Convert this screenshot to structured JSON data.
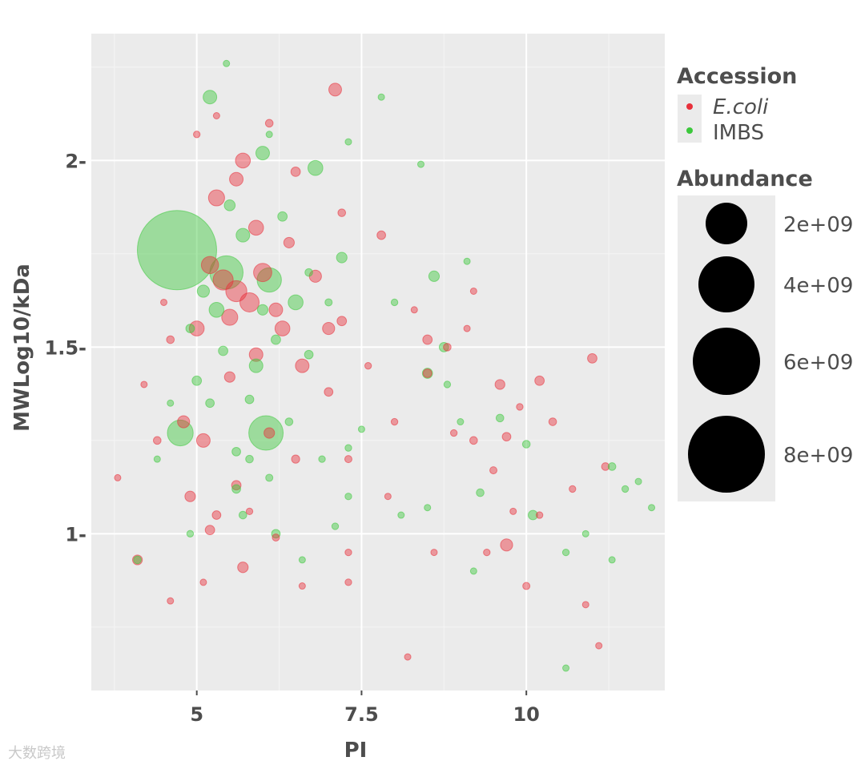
{
  "chart_data": {
    "type": "scatter",
    "title": "",
    "xlabel": "PI",
    "ylabel": "MWLog10/kDa",
    "xlim": [
      3.4,
      12.1
    ],
    "ylim": [
      0.58,
      2.34
    ],
    "x_ticks": [
      5,
      7.5,
      10
    ],
    "x_tick_labels": [
      "5",
      "7.5",
      "10"
    ],
    "y_ticks": [
      1.0,
      1.5,
      2.0
    ],
    "y_tick_labels": [
      "1-",
      "1.5-",
      "2-"
    ],
    "grid": true,
    "legend_placement": "right",
    "legends": {
      "color": {
        "title": "Accession",
        "entries": [
          {
            "label": "E.coli",
            "color": "#e8303b"
          },
          {
            "label": "IMBS",
            "color": "#3cc83c"
          }
        ]
      },
      "size": {
        "title": "Abundance",
        "entries": [
          {
            "label": "2e+09",
            "value": 2000000000
          },
          {
            "label": "4e+09",
            "value": 4000000000
          },
          {
            "label": "6e+09",
            "value": 6000000000
          },
          {
            "label": "8e+09",
            "value": 8000000000
          }
        ]
      }
    },
    "series": [
      {
        "name": "E.coli",
        "color": "#e8303b",
        "points": [
          [
            5.4,
            1.68,
            550000000.0
          ],
          [
            5.6,
            1.65,
            600000000.0
          ],
          [
            5.2,
            1.72,
            400000000.0
          ],
          [
            5.8,
            1.62,
            500000000.0
          ],
          [
            5.5,
            1.58,
            350000000.0
          ],
          [
            5.0,
            1.55,
            300000000.0
          ],
          [
            6.0,
            1.7,
            450000000.0
          ],
          [
            5.3,
            1.9,
            350000000.0
          ],
          [
            5.7,
            2.0,
            300000000.0
          ],
          [
            6.3,
            1.55,
            300000000.0
          ],
          [
            6.6,
            1.45,
            250000000.0
          ],
          [
            7.1,
            2.19,
            220000000.0
          ],
          [
            4.8,
            1.3,
            200000000.0
          ],
          [
            5.1,
            1.25,
            250000000.0
          ],
          [
            5.9,
            1.48,
            250000000.0
          ],
          [
            6.2,
            1.6,
            250000000.0
          ],
          [
            5.6,
            1.95,
            250000000.0
          ],
          [
            5.9,
            1.82,
            300000000.0
          ],
          [
            7.0,
            1.55,
            200000000.0
          ],
          [
            6.8,
            1.69,
            200000000.0
          ],
          [
            5.7,
            0.91,
            150000000.0
          ],
          [
            4.1,
            0.93,
            130000000.0
          ],
          [
            5.2,
            1.01,
            120000000.0
          ],
          [
            4.9,
            1.1,
            150000000.0
          ],
          [
            6.1,
            1.27,
            150000000.0
          ],
          [
            5.3,
            1.05,
            100000000.0
          ],
          [
            5.6,
            1.13,
            120000000.0
          ],
          [
            7.8,
            1.8,
            100000000.0
          ],
          [
            8.5,
            1.52,
            120000000.0
          ],
          [
            8.5,
            1.43,
            100000000.0
          ],
          [
            8.8,
            1.5,
            80000000.0
          ],
          [
            9.7,
            0.97,
            200000000.0
          ],
          [
            9.6,
            1.4,
            130000000.0
          ],
          [
            9.7,
            1.26,
            100000000.0
          ],
          [
            10.2,
            1.41,
            120000000.0
          ],
          [
            10.4,
            1.3,
            80000000.0
          ],
          [
            11.0,
            1.47,
            120000000.0
          ],
          [
            9.2,
            1.25,
            80000000.0
          ],
          [
            10.0,
            0.86,
            70000000.0
          ],
          [
            11.2,
            1.18,
            80000000.0
          ],
          [
            9.5,
            1.17,
            70000000.0
          ],
          [
            10.7,
            1.12,
            60000000.0
          ],
          [
            7.2,
            1.57,
            120000000.0
          ],
          [
            7.0,
            1.38,
            100000000.0
          ],
          [
            7.3,
            1.2,
            70000000.0
          ],
          [
            6.5,
            1.2,
            90000000.0
          ],
          [
            5.5,
            1.42,
            150000000.0
          ],
          [
            6.4,
            1.78,
            150000000.0
          ],
          [
            4.6,
            1.52,
            80000000.0
          ],
          [
            4.4,
            1.25,
            80000000.0
          ],
          [
            3.8,
            1.15,
            40000000.0
          ],
          [
            4.2,
            1.4,
            50000000.0
          ],
          [
            5.8,
            1.06,
            60000000.0
          ],
          [
            6.2,
            0.99,
            70000000.0
          ],
          [
            7.3,
            0.87,
            60000000.0
          ],
          [
            8.2,
            0.67,
            50000000.0
          ],
          [
            11.1,
            0.7,
            30000000.0
          ],
          [
            10.2,
            1.05,
            60000000.0
          ],
          [
            9.8,
            1.06,
            50000000.0
          ],
          [
            8.9,
            1.27,
            60000000.0
          ],
          [
            9.4,
            0.95,
            60000000.0
          ],
          [
            7.3,
            0.95,
            60000000.0
          ],
          [
            6.6,
            0.86,
            40000000.0
          ],
          [
            5.1,
            0.87,
            50000000.0
          ],
          [
            4.6,
            0.82,
            30000000.0
          ],
          [
            6.1,
            2.1,
            80000000.0
          ],
          [
            5.0,
            2.07,
            60000000.0
          ],
          [
            6.5,
            1.97,
            120000000.0
          ],
          [
            7.2,
            1.86,
            80000000.0
          ],
          [
            7.6,
            1.45,
            60000000.0
          ],
          [
            8.0,
            1.3,
            60000000.0
          ],
          [
            8.3,
            1.6,
            50000000.0
          ],
          [
            9.1,
            1.55,
            50000000.0
          ],
          [
            9.9,
            1.34,
            60000000.0
          ],
          [
            9.2,
            1.65,
            40000000.0
          ],
          [
            7.9,
            1.1,
            50000000.0
          ],
          [
            8.6,
            0.95,
            40000000.0
          ],
          [
            10.9,
            0.81,
            30000000.0
          ],
          [
            4.5,
            1.62,
            50000000.0
          ],
          [
            5.3,
            2.12,
            40000000.0
          ]
        ]
      },
      {
        "name": "IMBS",
        "color": "#3cc83c",
        "points": [
          [
            4.7,
            1.76,
            8500000000.0
          ],
          [
            6.05,
            1.27,
            1600000000.0
          ],
          [
            4.75,
            1.27,
            900000000.0
          ],
          [
            5.45,
            1.7,
            1500000000.0
          ],
          [
            6.1,
            1.68,
            800000000.0
          ],
          [
            5.2,
            2.17,
            250000000.0
          ],
          [
            6.8,
            1.98,
            300000000.0
          ],
          [
            6.0,
            2.02,
            250000000.0
          ],
          [
            6.5,
            1.62,
            300000000.0
          ],
          [
            5.9,
            1.45,
            250000000.0
          ],
          [
            5.3,
            1.6,
            300000000.0
          ],
          [
            5.7,
            1.8,
            250000000.0
          ],
          [
            7.2,
            1.74,
            150000000.0
          ],
          [
            8.6,
            1.69,
            150000000.0
          ],
          [
            8.75,
            1.5,
            120000000.0
          ],
          [
            8.5,
            1.43,
            140000000.0
          ],
          [
            10.1,
            1.05,
            120000000.0
          ],
          [
            10.0,
            1.24,
            80000000.0
          ],
          [
            4.1,
            0.93,
            80000000.0
          ],
          [
            5.7,
            1.05,
            80000000.0
          ],
          [
            6.2,
            1.0,
            100000000.0
          ],
          [
            7.1,
            1.02,
            60000000.0
          ],
          [
            4.9,
            1.0,
            60000000.0
          ],
          [
            9.3,
            1.11,
            80000000.0
          ],
          [
            9.6,
            1.31,
            80000000.0
          ],
          [
            10.6,
            0.95,
            60000000.0
          ],
          [
            11.5,
            1.12,
            60000000.0
          ],
          [
            11.3,
            1.18,
            80000000.0
          ],
          [
            6.4,
            1.3,
            80000000.0
          ],
          [
            6.9,
            1.2,
            60000000.0
          ],
          [
            7.3,
            1.23,
            60000000.0
          ],
          [
            5.6,
            1.12,
            100000000.0
          ],
          [
            5.8,
            1.36,
            100000000.0
          ],
          [
            6.2,
            1.52,
            120000000.0
          ],
          [
            5.0,
            1.41,
            120000000.0
          ],
          [
            5.4,
            1.49,
            120000000.0
          ],
          [
            6.7,
            1.48,
            100000000.0
          ],
          [
            7.0,
            1.62,
            70000000.0
          ],
          [
            8.0,
            1.62,
            60000000.0
          ],
          [
            8.8,
            1.4,
            60000000.0
          ],
          [
            9.0,
            1.3,
            50000000.0
          ],
          [
            8.4,
            1.99,
            50000000.0
          ],
          [
            7.5,
            1.28,
            50000000.0
          ],
          [
            8.1,
            1.05,
            50000000.0
          ],
          [
            9.1,
            1.73,
            40000000.0
          ],
          [
            10.9,
            1.0,
            40000000.0
          ],
          [
            11.3,
            0.93,
            40000000.0
          ],
          [
            11.9,
            1.07,
            30000000.0
          ],
          [
            11.7,
            1.14,
            30000000.0
          ],
          [
            5.45,
            2.26,
            30000000.0
          ],
          [
            7.8,
            2.17,
            30000000.0
          ],
          [
            7.3,
            2.05,
            40000000.0
          ],
          [
            6.1,
            2.07,
            50000000.0
          ],
          [
            5.6,
            1.22,
            100000000.0
          ],
          [
            6.1,
            1.15,
            70000000.0
          ],
          [
            6.6,
            0.93,
            50000000.0
          ],
          [
            7.3,
            1.1,
            60000000.0
          ],
          [
            8.5,
            1.07,
            50000000.0
          ],
          [
            9.2,
            0.9,
            50000000.0
          ],
          [
            10.6,
            0.64,
            30000000.0
          ],
          [
            4.4,
            1.2,
            50000000.0
          ],
          [
            4.6,
            1.35,
            50000000.0
          ],
          [
            5.1,
            1.65,
            200000000.0
          ],
          [
            5.5,
            1.88,
            160000000.0
          ],
          [
            6.3,
            1.85,
            120000000.0
          ],
          [
            6.0,
            1.6,
            150000000.0
          ],
          [
            5.2,
            1.35,
            100000000.0
          ],
          [
            4.9,
            1.55,
            100000000.0
          ],
          [
            6.7,
            1.7,
            80000000.0
          ],
          [
            5.8,
            1.2,
            80000000.0
          ]
        ]
      }
    ]
  },
  "watermark": "大数跨境"
}
